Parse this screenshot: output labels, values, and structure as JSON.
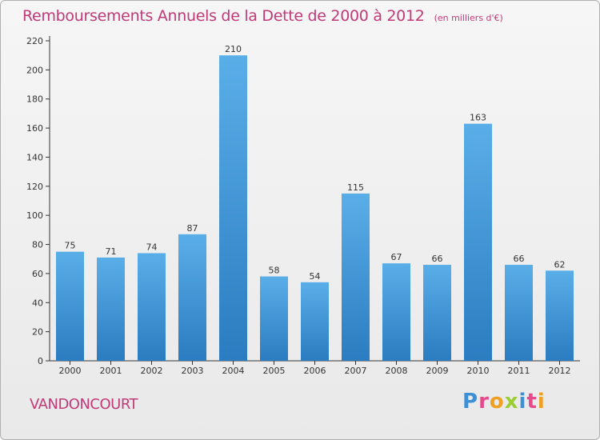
{
  "header": {
    "title": "Remboursements Annuels de la Dette de 2000 à 2012",
    "subtitle": "(en milliers d'€)"
  },
  "footer": {
    "commune": "VANDONCOURT",
    "logo_text": "Proxiti"
  },
  "colors": {
    "title": "#c03a78",
    "bar_top": "#5aaee8",
    "bar_bottom": "#2b7cc0",
    "logo_letters": [
      "#3d8fd6",
      "#e64a8c",
      "#f0a020",
      "#9acd32",
      "#3d8fd6",
      "#e64a8c",
      "#f0a020"
    ]
  },
  "chart_data": {
    "type": "bar",
    "title": "Remboursements Annuels de la Dette de 2000 à 2012",
    "subtitle": "(en milliers d'€)",
    "categories": [
      "2000",
      "2001",
      "2002",
      "2003",
      "2004",
      "2005",
      "2006",
      "2007",
      "2008",
      "2009",
      "2010",
      "2011",
      "2012"
    ],
    "values": [
      75,
      71,
      74,
      87,
      210,
      58,
      54,
      115,
      67,
      66,
      163,
      66,
      62
    ],
    "ylim": [
      0,
      220
    ],
    "yticks": [
      0,
      20,
      40,
      60,
      80,
      100,
      120,
      140,
      160,
      180,
      200,
      220
    ],
    "grid": false,
    "data_labels": true
  }
}
